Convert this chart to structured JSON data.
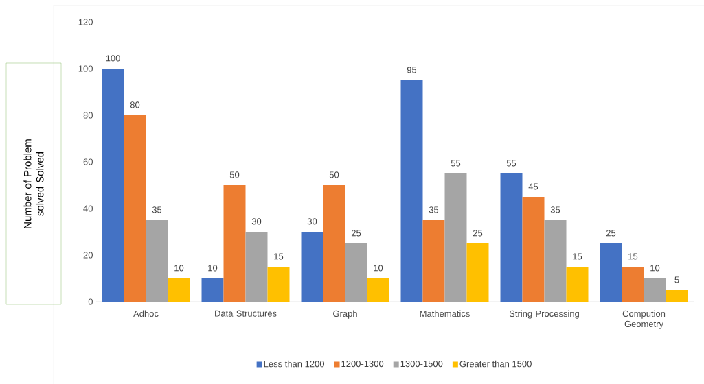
{
  "chart_data": {
    "type": "bar",
    "ylabel": "Number of Problem solved Solved",
    "categories": [
      "Adhoc",
      "Data Structures",
      "Graph",
      "Mathematics",
      "String Processing",
      "Compution Geometry"
    ],
    "series": [
      {
        "name": "Less than 1200",
        "color": "#4472c4",
        "values": [
          100,
          10,
          30,
          95,
          55,
          25
        ]
      },
      {
        "name": "1200-1300",
        "color": "#ed7d31",
        "values": [
          80,
          50,
          50,
          35,
          45,
          15
        ]
      },
      {
        "name": "1300-1500",
        "color": "#a5a5a5",
        "values": [
          35,
          30,
          25,
          55,
          35,
          10
        ]
      },
      {
        "name": "Greater than 1500",
        "color": "#ffc000",
        "values": [
          10,
          15,
          10,
          25,
          15,
          5
        ]
      }
    ],
    "ylim": [
      0,
      120
    ],
    "yticks": [
      0,
      20,
      40,
      60,
      80,
      100,
      120
    ],
    "data_labels": true,
    "grid": false,
    "legend": "bottom"
  }
}
